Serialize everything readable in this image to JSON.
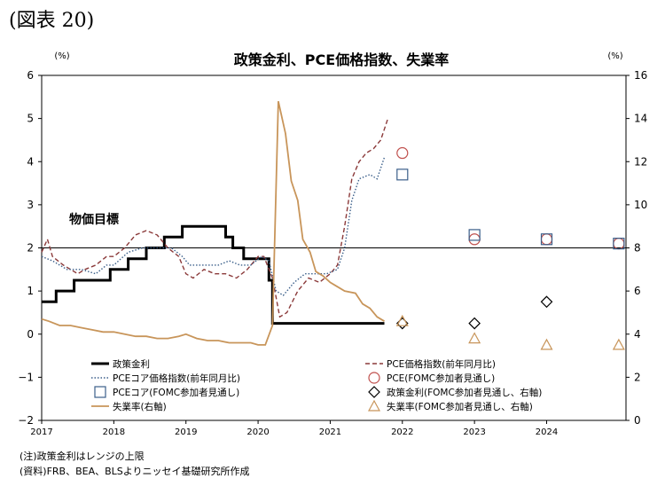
{
  "figure_label": "(図表 20)",
  "notes": [
    "(注)政策金利はレンジの上限",
    "(資料)FRB、BEA、BLSよりニッセイ基礎研究所作成"
  ],
  "colors": {
    "policy": "#000000",
    "pce": "#8b3a3a",
    "core": "#3b5f8a",
    "unemployment": "#c8955a",
    "ref_line": "#000000"
  },
  "chart_data": {
    "type": "line",
    "title": "政策金利、PCE価格指数、失業率",
    "y_left_unit": "(%)",
    "y_right_unit": "(%)",
    "y_left_range": [
      -2,
      6
    ],
    "y_right_range": [
      0,
      16
    ],
    "y_left_ticks": [
      "6",
      "5",
      "4",
      "3",
      "2",
      "1",
      "0",
      "−1",
      "−2"
    ],
    "y_right_ticks": [
      "16",
      "14",
      "12",
      "10",
      "8",
      "6",
      "4",
      "2",
      "0"
    ],
    "x_ticks": [
      "2017",
      "2018",
      "2019",
      "2020",
      "2021",
      "2022",
      "2023",
      "2024"
    ],
    "annotation": "物価目標",
    "reference_line": 2,
    "series": [
      {
        "name": "政策金利",
        "axis": "left",
        "style": "step",
        "points": [
          [
            2017.0,
            0.75
          ],
          [
            2017.2,
            0.75
          ],
          [
            2017.2,
            1.0
          ],
          [
            2017.45,
            1.0
          ],
          [
            2017.45,
            1.25
          ],
          [
            2017.95,
            1.25
          ],
          [
            2017.95,
            1.5
          ],
          [
            2018.2,
            1.5
          ],
          [
            2018.2,
            1.75
          ],
          [
            2018.45,
            1.75
          ],
          [
            2018.45,
            2.0
          ],
          [
            2018.7,
            2.0
          ],
          [
            2018.7,
            2.25
          ],
          [
            2018.95,
            2.25
          ],
          [
            2018.95,
            2.5
          ],
          [
            2019.55,
            2.5
          ],
          [
            2019.55,
            2.25
          ],
          [
            2019.65,
            2.25
          ],
          [
            2019.65,
            2.0
          ],
          [
            2019.8,
            2.0
          ],
          [
            2019.8,
            1.75
          ],
          [
            2020.15,
            1.75
          ],
          [
            2020.15,
            1.25
          ],
          [
            2020.2,
            1.25
          ],
          [
            2020.2,
            0.25
          ],
          [
            2021.75,
            0.25
          ]
        ]
      },
      {
        "name": "PCE価格指数(前年同月比)",
        "axis": "left",
        "points": [
          [
            2017.0,
            1.9
          ],
          [
            2017.08,
            2.2
          ],
          [
            2017.15,
            1.8
          ],
          [
            2017.3,
            1.6
          ],
          [
            2017.5,
            1.4
          ],
          [
            2017.6,
            1.5
          ],
          [
            2017.75,
            1.6
          ],
          [
            2017.9,
            1.8
          ],
          [
            2018.0,
            1.8
          ],
          [
            2018.15,
            2.0
          ],
          [
            2018.3,
            2.3
          ],
          [
            2018.45,
            2.4
          ],
          [
            2018.6,
            2.3
          ],
          [
            2018.75,
            2.0
          ],
          [
            2018.9,
            1.8
          ],
          [
            2019.0,
            1.4
          ],
          [
            2019.1,
            1.3
          ],
          [
            2019.25,
            1.5
          ],
          [
            2019.4,
            1.4
          ],
          [
            2019.55,
            1.4
          ],
          [
            2019.7,
            1.3
          ],
          [
            2019.85,
            1.5
          ],
          [
            2020.0,
            1.8
          ],
          [
            2020.08,
            1.8
          ],
          [
            2020.2,
            1.3
          ],
          [
            2020.3,
            0.4
          ],
          [
            2020.4,
            0.5
          ],
          [
            2020.55,
            1.0
          ],
          [
            2020.7,
            1.3
          ],
          [
            2020.85,
            1.2
          ],
          [
            2021.0,
            1.4
          ],
          [
            2021.1,
            1.6
          ],
          [
            2021.2,
            2.5
          ],
          [
            2021.3,
            3.6
          ],
          [
            2021.4,
            4.0
          ],
          [
            2021.5,
            4.2
          ],
          [
            2021.6,
            4.3
          ],
          [
            2021.7,
            4.5
          ],
          [
            2021.8,
            5.0
          ]
        ]
      },
      {
        "name": "PCEコア価格指数(前年同月比)",
        "axis": "left",
        "points": [
          [
            2017.0,
            1.8
          ],
          [
            2017.15,
            1.7
          ],
          [
            2017.35,
            1.5
          ],
          [
            2017.55,
            1.5
          ],
          [
            2017.75,
            1.4
          ],
          [
            2017.9,
            1.6
          ],
          [
            2018.0,
            1.6
          ],
          [
            2018.2,
            1.9
          ],
          [
            2018.4,
            2.0
          ],
          [
            2018.6,
            2.0
          ],
          [
            2018.8,
            2.0
          ],
          [
            2018.95,
            1.8
          ],
          [
            2019.05,
            1.6
          ],
          [
            2019.25,
            1.6
          ],
          [
            2019.45,
            1.6
          ],
          [
            2019.6,
            1.7
          ],
          [
            2019.75,
            1.6
          ],
          [
            2019.9,
            1.6
          ],
          [
            2020.05,
            1.8
          ],
          [
            2020.15,
            1.7
          ],
          [
            2020.25,
            1.0
          ],
          [
            2020.35,
            0.9
          ],
          [
            2020.5,
            1.2
          ],
          [
            2020.65,
            1.4
          ],
          [
            2020.8,
            1.4
          ],
          [
            2020.95,
            1.4
          ],
          [
            2021.1,
            1.5
          ],
          [
            2021.2,
            2.0
          ],
          [
            2021.3,
            3.1
          ],
          [
            2021.4,
            3.6
          ],
          [
            2021.55,
            3.7
          ],
          [
            2021.65,
            3.6
          ],
          [
            2021.75,
            4.1
          ]
        ]
      },
      {
        "name": "失業率(右軸)",
        "axis": "right",
        "points": [
          [
            2017.0,
            4.7
          ],
          [
            2017.1,
            4.6
          ],
          [
            2017.25,
            4.4
          ],
          [
            2017.4,
            4.4
          ],
          [
            2017.55,
            4.3
          ],
          [
            2017.7,
            4.2
          ],
          [
            2017.85,
            4.1
          ],
          [
            2018.0,
            4.1
          ],
          [
            2018.15,
            4.0
          ],
          [
            2018.3,
            3.9
          ],
          [
            2018.45,
            3.9
          ],
          [
            2018.6,
            3.8
          ],
          [
            2018.75,
            3.8
          ],
          [
            2018.9,
            3.9
          ],
          [
            2019.0,
            4.0
          ],
          [
            2019.15,
            3.8
          ],
          [
            2019.3,
            3.7
          ],
          [
            2019.45,
            3.7
          ],
          [
            2019.6,
            3.6
          ],
          [
            2019.75,
            3.6
          ],
          [
            2019.9,
            3.6
          ],
          [
            2020.0,
            3.5
          ],
          [
            2020.1,
            3.5
          ],
          [
            2020.2,
            4.4
          ],
          [
            2020.28,
            14.8
          ],
          [
            2020.38,
            13.3
          ],
          [
            2020.46,
            11.1
          ],
          [
            2020.55,
            10.2
          ],
          [
            2020.62,
            8.4
          ],
          [
            2020.72,
            7.8
          ],
          [
            2020.8,
            6.9
          ],
          [
            2020.9,
            6.7
          ],
          [
            2021.0,
            6.4
          ],
          [
            2021.1,
            6.2
          ],
          [
            2021.2,
            6.0
          ],
          [
            2021.35,
            5.9
          ],
          [
            2021.45,
            5.4
          ],
          [
            2021.55,
            5.2
          ],
          [
            2021.65,
            4.8
          ],
          [
            2021.75,
            4.6
          ]
        ]
      }
    ],
    "fomc_projections": [
      {
        "name": "PCE(FOMC参加者見通し)",
        "marker": "circle",
        "axis": "left",
        "points": [
          [
            2022,
            4.2
          ],
          [
            2023,
            2.2
          ],
          [
            2024,
            2.2
          ],
          [
            2025,
            2.1
          ]
        ]
      },
      {
        "name": "PCEコア(FOMC参加者見通し)",
        "marker": "square",
        "axis": "left",
        "points": [
          [
            2022,
            3.7
          ],
          [
            2023,
            2.3
          ],
          [
            2024,
            2.2
          ],
          [
            2025,
            2.1
          ]
        ]
      },
      {
        "name": "政策金利(FOMC参加者見通し、右軸)",
        "marker": "diamond",
        "axis": "left",
        "points": [
          [
            2022,
            0.25
          ],
          [
            2023,
            0.25
          ],
          [
            2024,
            0.75
          ]
        ]
      },
      {
        "name": "失業率(FOMC参加者見通し、右軸)",
        "marker": "triangle",
        "axis": "right",
        "points": [
          [
            2022,
            4.6
          ],
          [
            2023,
            3.8
          ],
          [
            2024,
            3.5
          ],
          [
            2025,
            3.5
          ]
        ]
      }
    ],
    "legend": [
      "政策金利",
      "PCE価格指数(前年同月比)",
      "PCEコア価格指数(前年同月比)",
      "PCE(FOMC参加者見通し)",
      "PCEコア(FOMC参加者見通し)",
      "政策金利(FOMC参加者見通し、右軸)",
      "失業率(右軸)",
      "失業率(FOMC参加者見通し、右軸)"
    ]
  }
}
